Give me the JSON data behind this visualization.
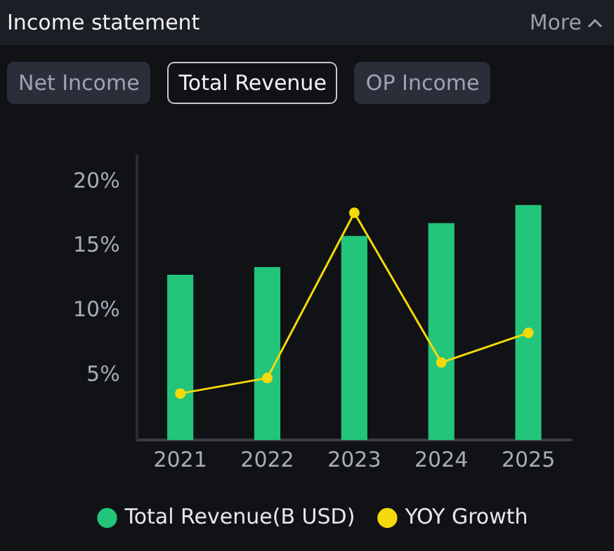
{
  "chart_data": {
    "type": "bar",
    "title": "Income statement",
    "annotations": [
      "More",
      "Net Income",
      "Total Revenue",
      "OP Income"
    ],
    "categories": [
      "2021",
      "2022",
      "2023",
      "2024",
      "2025"
    ],
    "series": [
      {
        "name": "Total Revenue(B USD)",
        "color": "#22c57a",
        "values": [
          12.8,
          13.4,
          15.8,
          16.8,
          18.2
        ]
      },
      {
        "name": "YOY Growth",
        "type": "line",
        "color": "#f5d90a",
        "values": [
          3.6,
          4.8,
          17.6,
          6.0,
          8.3
        ]
      }
    ],
    "ylim": [
      0,
      22
    ],
    "yticks": [
      {
        "value": 5,
        "label": "5%"
      },
      {
        "value": 10,
        "label": "10%"
      },
      {
        "value": 15,
        "label": "15%"
      },
      {
        "value": 20,
        "label": "20%"
      }
    ],
    "grid": false,
    "legend": "bottom",
    "marker": "circle",
    "line_style": "solid"
  }
}
